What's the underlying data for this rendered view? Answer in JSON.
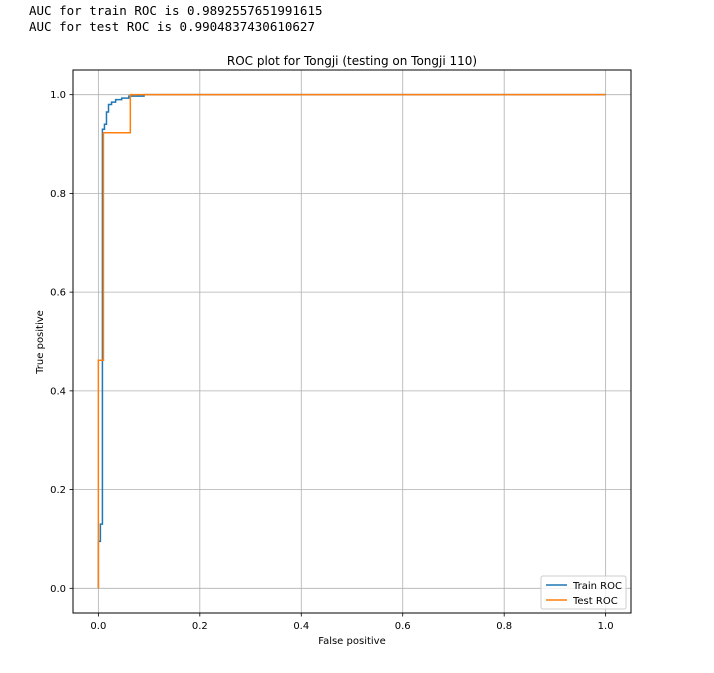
{
  "console": {
    "lines": [
      "AUC for train ROC is 0.9892557651991615",
      "AUC for test ROC is 0.9904837430610627"
    ]
  },
  "chart_data": {
    "type": "line",
    "title": "ROC plot for Tongji (testing on Tongji 110)",
    "xlabel": "False positive",
    "ylabel": "True positive",
    "xlim": [
      -0.05,
      1.05
    ],
    "ylim": [
      -0.05,
      1.05
    ],
    "xticks": [
      0.0,
      0.2,
      0.4,
      0.6,
      0.8,
      1.0
    ],
    "yticks": [
      0.0,
      0.2,
      0.4,
      0.6,
      0.8,
      1.0
    ],
    "xtick_labels": [
      "0.0",
      "0.2",
      "0.4",
      "0.6",
      "0.8",
      "1.0"
    ],
    "ytick_labels": [
      "0.0",
      "0.2",
      "0.4",
      "0.6",
      "0.8",
      "1.0"
    ],
    "grid": true,
    "legend_position": "bottom-right",
    "series": [
      {
        "name": "Train ROC",
        "color": "#1f77b4",
        "x": [
          0.0,
          0.0,
          0.004,
          0.004,
          0.008,
          0.008,
          0.012,
          0.012,
          0.016,
          0.016,
          0.02,
          0.02,
          0.026,
          0.026,
          0.034,
          0.034,
          0.046,
          0.046,
          0.06,
          0.06,
          0.09,
          0.09,
          1.0
        ],
        "y": [
          0.0,
          0.095,
          0.095,
          0.13,
          0.13,
          0.93,
          0.93,
          0.94,
          0.94,
          0.965,
          0.965,
          0.98,
          0.98,
          0.985,
          0.985,
          0.99,
          0.99,
          0.993,
          0.993,
          0.997,
          0.997,
          1.0,
          1.0
        ]
      },
      {
        "name": "Test ROC",
        "color": "#ff7f0e",
        "x": [
          0.0,
          0.0,
          0.01,
          0.01,
          0.063,
          0.063,
          1.0
        ],
        "y": [
          0.0,
          0.462,
          0.462,
          0.923,
          0.923,
          1.0,
          1.0
        ]
      }
    ]
  }
}
